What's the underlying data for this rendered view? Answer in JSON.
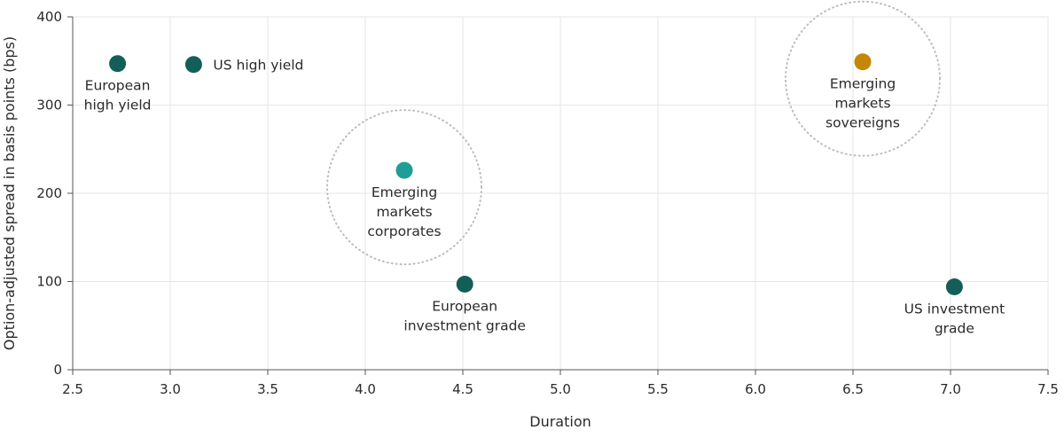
{
  "chart_data": {
    "type": "scatter",
    "xlabel": "Duration",
    "ylabel": "Option-adjusted spread in basis points (bps)",
    "xlim": [
      2.5,
      7.5
    ],
    "ylim": [
      0,
      400
    ],
    "xticks": [
      "2.5",
      "3.0",
      "3.5",
      "4.0",
      "4.5",
      "5.0",
      "5.5",
      "6.0",
      "6.5",
      "7.0",
      "7.5"
    ],
    "yticks": [
      "0",
      "100",
      "200",
      "300",
      "400"
    ],
    "grid": true,
    "colors": {
      "dark_teal": "#135f58",
      "light_teal": "#1e9e96",
      "gold": "#c4870a",
      "grid": "#e6e6e6",
      "axis": "#555555",
      "ring": "#bdbdbd"
    },
    "points": [
      {
        "label_lines": [
          "European",
          "high yield"
        ],
        "x": 2.73,
        "y": 347,
        "color": "#135f58",
        "label_pos": "below",
        "highlight": false
      },
      {
        "label_lines": [
          "US high yield"
        ],
        "x": 3.12,
        "y": 346,
        "color": "#135f58",
        "label_pos": "right",
        "highlight": false
      },
      {
        "label_lines": [
          "Emerging",
          "markets",
          "corporates"
        ],
        "x": 4.2,
        "y": 226,
        "color": "#1e9e96",
        "label_pos": "below",
        "highlight": true
      },
      {
        "label_lines": [
          "European",
          "investment grade"
        ],
        "x": 4.51,
        "y": 97,
        "color": "#135f58",
        "label_pos": "below",
        "highlight": false
      },
      {
        "label_lines": [
          "Emerging",
          "markets",
          "sovereigns"
        ],
        "x": 6.55,
        "y": 349,
        "color": "#c4870a",
        "label_pos": "below",
        "highlight": true
      },
      {
        "label_lines": [
          "US investment",
          "grade"
        ],
        "x": 7.02,
        "y": 94,
        "color": "#135f58",
        "label_pos": "below",
        "highlight": false
      }
    ]
  }
}
